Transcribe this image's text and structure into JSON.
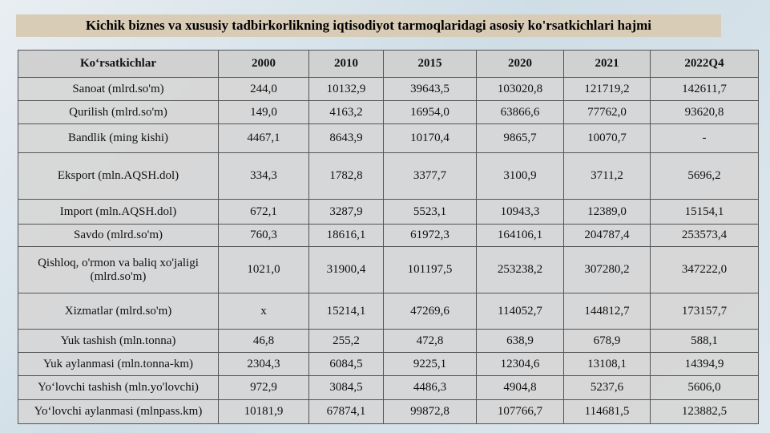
{
  "header": {
    "title": "Kichik biznes va xususiy tadbirkorlikning iqtisodiyot tarmoqlaridagi asosiy ko'rsatkichlari hajmi"
  },
  "table": {
    "columns": [
      "Ko‘rsatkichlar",
      "2000",
      "2010",
      "2015",
      "2020",
      "2021",
      "2022Q4"
    ],
    "rows": [
      [
        "Sanoat (mlrd.so'm)",
        "244,0",
        "10132,9",
        "39643,5",
        "103020,8",
        "121719,2",
        "142611,7"
      ],
      [
        "Qurilish  (mlrd.so'm)",
        "149,0",
        "4163,2",
        "16954,0",
        "63866,6",
        "77762,0",
        "93620,8"
      ],
      [
        "Bandlik (ming kishi)",
        "4467,1",
        "8643,9",
        "10170,4",
        "9865,7",
        "10070,7",
        "-"
      ],
      [
        "Eksport  (mln.AQSH.dol)",
        "334,3",
        "1782,8",
        "3377,7",
        "3100,9",
        "3711,2",
        "5696,2"
      ],
      [
        "Import (mln.AQSH.dol)",
        "672,1",
        "3287,9",
        "5523,1",
        "10943,3",
        "12389,0",
        "15154,1"
      ],
      [
        "Savdo (mlrd.so'm)",
        "760,3",
        "18616,1",
        "61972,3",
        "164106,1",
        "204787,4",
        "253573,4"
      ],
      [
        "Qishloq, o'rmon va baliq xo'jaligi (mlrd.so'm)",
        "1021,0",
        "31900,4",
        "101197,5",
        "253238,2",
        "307280,2",
        "347222,0"
      ],
      [
        "Xizmatlar (mlrd.so'm)",
        "x",
        "15214,1",
        "47269,6",
        "114052,7",
        "144812,7",
        "173157,7"
      ],
      [
        "Yuk tashish (mln.tonna)",
        "46,8",
        "255,2",
        "472,8",
        "638,9",
        "678,9",
        "588,1"
      ],
      [
        "Yuk aylanmasi (mln.tonna-km)",
        "2304,3",
        "6084,5",
        "9225,1",
        "12304,6",
        "13108,1",
        "14394,9"
      ],
      [
        "Yo‘lovchi tashish (mln.yo'lovchi)",
        "972,9",
        "3084,5",
        "4486,3",
        "4904,8",
        "5237,6",
        "5606,0"
      ],
      [
        "Yo‘lovchi aylanmasi (mlnpass.km)",
        "10181,9",
        "67874,1",
        "99872,8",
        "107766,7",
        "114681,5",
        "123882,5"
      ]
    ]
  }
}
